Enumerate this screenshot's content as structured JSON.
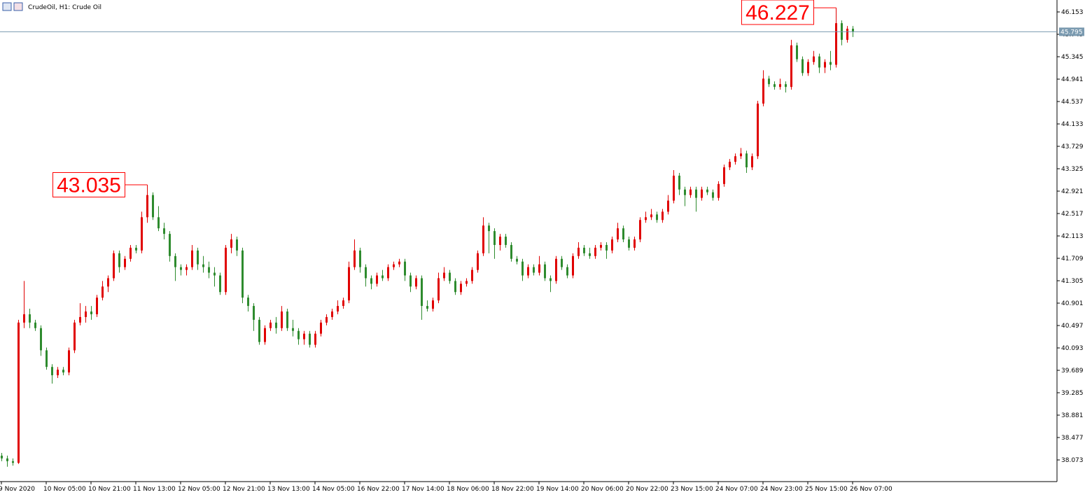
{
  "chart_data": {
    "type": "candlestick",
    "title": "CrudeOil, H1:  Crude Oil",
    "up_color": "#e00000",
    "down_color": "#2e8b2e",
    "ylim": [
      37.682,
      46.368
    ],
    "yticks": [
      38.073,
      38.477,
      38.881,
      39.285,
      39.689,
      40.093,
      40.497,
      40.901,
      41.305,
      41.709,
      42.113,
      42.517,
      42.921,
      43.325,
      43.729,
      44.133,
      44.537,
      44.941,
      45.345,
      45.749,
      46.153
    ],
    "xticks": [
      {
        "value": 0,
        "label": "9 Nov 2020"
      },
      {
        "value": 8,
        "label": "10 Nov 05:00"
      },
      {
        "value": 16,
        "label": "10 Nov 21:00"
      },
      {
        "value": 24,
        "label": "11 Nov 13:00"
      },
      {
        "value": 32,
        "label": "12 Nov 05:00"
      },
      {
        "value": 40,
        "label": "12 Nov 21:00"
      },
      {
        "value": 48,
        "label": "13 Nov 13:00"
      },
      {
        "value": 56,
        "label": "14 Nov 05:00"
      },
      {
        "value": 64,
        "label": "16 Nov 22:00"
      },
      {
        "value": 72,
        "label": "17 Nov 14:00"
      },
      {
        "value": 80,
        "label": "18 Nov 06:00"
      },
      {
        "value": 88,
        "label": "18 Nov 22:00"
      },
      {
        "value": 96,
        "label": "19 Nov 14:00"
      },
      {
        "value": 104,
        "label": "20 Nov 06:00"
      },
      {
        "value": 112,
        "label": "20 Nov 22:00"
      },
      {
        "value": 120,
        "label": "23 Nov 15:00"
      },
      {
        "value": 128,
        "label": "24 Nov 07:00"
      },
      {
        "value": 136,
        "label": "24 Nov 23:00"
      },
      {
        "value": 144,
        "label": "25 Nov 15:00"
      },
      {
        "value": 152,
        "label": "26 Nov 07:00"
      }
    ],
    "last_price": 45.795,
    "annotations": [
      43.035,
      46.227
    ],
    "candles": [
      [
        38.15,
        38.2,
        38.05,
        38.1
      ],
      [
        38.1,
        38.15,
        37.95,
        38.05
      ],
      [
        38.05,
        38.1,
        37.97,
        38.02
      ],
      [
        38.02,
        40.6,
        38.0,
        40.55
      ],
      [
        40.55,
        41.3,
        40.45,
        40.7
      ],
      [
        40.7,
        40.8,
        40.45,
        40.55
      ],
      [
        40.55,
        40.6,
        40.4,
        40.45
      ],
      [
        40.45,
        40.5,
        39.95,
        40.05
      ],
      [
        40.05,
        40.1,
        39.7,
        39.75
      ],
      [
        39.75,
        39.8,
        39.45,
        39.6
      ],
      [
        39.6,
        39.75,
        39.55,
        39.7
      ],
      [
        39.7,
        39.75,
        39.6,
        39.65
      ],
      [
        39.65,
        40.1,
        39.6,
        40.05
      ],
      [
        40.05,
        40.6,
        40.0,
        40.55
      ],
      [
        40.55,
        40.9,
        40.5,
        40.65
      ],
      [
        40.65,
        40.85,
        40.55,
        40.75
      ],
      [
        40.75,
        40.85,
        40.6,
        40.7
      ],
      [
        40.7,
        41.05,
        40.65,
        41.0
      ],
      [
        41.0,
        41.3,
        40.95,
        41.2
      ],
      [
        41.2,
        41.4,
        41.1,
        41.35
      ],
      [
        41.35,
        41.85,
        41.3,
        41.8
      ],
      [
        41.8,
        41.85,
        41.45,
        41.55
      ],
      [
        41.55,
        41.75,
        41.5,
        41.7
      ],
      [
        41.7,
        41.95,
        41.65,
        41.9
      ],
      [
        41.9,
        41.95,
        41.8,
        41.85
      ],
      [
        41.85,
        42.55,
        41.8,
        42.45
      ],
      [
        42.45,
        43.035,
        42.35,
        42.85
      ],
      [
        42.85,
        42.9,
        42.4,
        42.45
      ],
      [
        42.45,
        42.65,
        42.2,
        42.25
      ],
      [
        42.25,
        42.35,
        42.05,
        42.15
      ],
      [
        42.15,
        42.2,
        41.65,
        41.75
      ],
      [
        41.75,
        41.8,
        41.3,
        41.55
      ],
      [
        41.55,
        41.6,
        41.4,
        41.5
      ],
      [
        41.5,
        41.6,
        41.4,
        41.55
      ],
      [
        41.55,
        41.95,
        41.5,
        41.85
      ],
      [
        41.85,
        41.9,
        41.5,
        41.6
      ],
      [
        41.6,
        41.75,
        41.45,
        41.55
      ],
      [
        41.55,
        41.65,
        41.35,
        41.45
      ],
      [
        41.45,
        41.55,
        41.2,
        41.4
      ],
      [
        41.4,
        41.45,
        41.05,
        41.1
      ],
      [
        41.1,
        41.95,
        41.05,
        41.9
      ],
      [
        41.9,
        42.15,
        41.8,
        42.05
      ],
      [
        42.05,
        42.1,
        41.75,
        41.85
      ],
      [
        41.85,
        41.9,
        40.9,
        41.0
      ],
      [
        41.0,
        41.05,
        40.75,
        40.85
      ],
      [
        40.85,
        40.9,
        40.4,
        40.6
      ],
      [
        40.6,
        40.65,
        40.15,
        40.2
      ],
      [
        40.2,
        40.5,
        40.15,
        40.45
      ],
      [
        40.45,
        40.6,
        40.4,
        40.55
      ],
      [
        40.55,
        40.65,
        40.35,
        40.45
      ],
      [
        40.45,
        40.85,
        40.4,
        40.75
      ],
      [
        40.75,
        40.8,
        40.4,
        40.45
      ],
      [
        40.45,
        40.6,
        40.3,
        40.4
      ],
      [
        40.4,
        40.45,
        40.15,
        40.25
      ],
      [
        40.25,
        40.4,
        40.15,
        40.35
      ],
      [
        40.35,
        40.4,
        40.1,
        40.15
      ],
      [
        40.15,
        40.4,
        40.1,
        40.35
      ],
      [
        40.35,
        40.6,
        40.3,
        40.55
      ],
      [
        40.55,
        40.7,
        40.5,
        40.65
      ],
      [
        40.65,
        40.8,
        40.6,
        40.75
      ],
      [
        40.75,
        40.95,
        40.7,
        40.85
      ],
      [
        40.85,
        41.0,
        40.8,
        40.95
      ],
      [
        40.95,
        41.65,
        40.9,
        41.55
      ],
      [
        41.55,
        42.05,
        41.5,
        41.85
      ],
      [
        41.85,
        41.9,
        41.45,
        41.55
      ],
      [
        41.55,
        41.6,
        41.2,
        41.35
      ],
      [
        41.35,
        41.4,
        41.15,
        41.25
      ],
      [
        41.25,
        41.45,
        41.2,
        41.4
      ],
      [
        41.4,
        41.5,
        41.3,
        41.35
      ],
      [
        41.35,
        41.6,
        41.3,
        41.55
      ],
      [
        41.55,
        41.65,
        41.5,
        41.6
      ],
      [
        41.6,
        41.7,
        41.55,
        41.65
      ],
      [
        41.65,
        41.7,
        41.3,
        41.4
      ],
      [
        41.4,
        41.45,
        41.1,
        41.2
      ],
      [
        41.2,
        41.4,
        41.15,
        41.35
      ],
      [
        41.35,
        41.4,
        40.6,
        40.85
      ],
      [
        40.85,
        40.95,
        40.75,
        40.8
      ],
      [
        40.8,
        41.0,
        40.75,
        40.95
      ],
      [
        40.95,
        41.45,
        40.9,
        41.35
      ],
      [
        41.35,
        41.55,
        41.3,
        41.45
      ],
      [
        41.45,
        41.5,
        41.25,
        41.3
      ],
      [
        41.3,
        41.35,
        41.05,
        41.1
      ],
      [
        41.1,
        41.3,
        41.05,
        41.25
      ],
      [
        41.25,
        41.35,
        41.2,
        41.3
      ],
      [
        41.3,
        41.55,
        41.25,
        41.5
      ],
      [
        41.5,
        41.85,
        41.45,
        41.8
      ],
      [
        41.8,
        42.45,
        41.75,
        42.3
      ],
      [
        42.3,
        42.35,
        41.8,
        42.2
      ],
      [
        42.2,
        42.25,
        41.7,
        41.95
      ],
      [
        41.95,
        42.15,
        41.85,
        42.1
      ],
      [
        42.1,
        42.15,
        41.9,
        41.95
      ],
      [
        41.95,
        42.0,
        41.65,
        41.7
      ],
      [
        41.7,
        41.75,
        41.6,
        41.65
      ],
      [
        41.65,
        41.7,
        41.3,
        41.4
      ],
      [
        41.4,
        41.6,
        41.35,
        41.55
      ],
      [
        41.55,
        41.6,
        41.4,
        41.45
      ],
      [
        41.45,
        41.75,
        41.4,
        41.6
      ],
      [
        41.6,
        41.65,
        41.3,
        41.35
      ],
      [
        41.35,
        41.4,
        41.1,
        41.3
      ],
      [
        41.3,
        41.75,
        41.25,
        41.7
      ],
      [
        41.7,
        41.75,
        41.5,
        41.55
      ],
      [
        41.55,
        41.6,
        41.35,
        41.4
      ],
      [
        41.4,
        41.8,
        41.35,
        41.75
      ],
      [
        41.75,
        42.0,
        41.7,
        41.9
      ],
      [
        41.9,
        41.95,
        41.75,
        41.8
      ],
      [
        41.8,
        41.9,
        41.7,
        41.75
      ],
      [
        41.75,
        41.95,
        41.7,
        41.9
      ],
      [
        41.9,
        42.0,
        41.85,
        41.95
      ],
      [
        41.95,
        42.0,
        41.7,
        41.85
      ],
      [
        41.85,
        42.1,
        41.8,
        42.05
      ],
      [
        42.05,
        42.35,
        42.0,
        42.25
      ],
      [
        42.25,
        42.3,
        42.0,
        42.05
      ],
      [
        42.05,
        42.1,
        41.85,
        41.9
      ],
      [
        41.9,
        42.1,
        41.85,
        42.05
      ],
      [
        42.05,
        42.45,
        42.0,
        42.4
      ],
      [
        42.4,
        42.55,
        42.35,
        42.45
      ],
      [
        42.45,
        42.6,
        42.4,
        42.5
      ],
      [
        42.5,
        42.55,
        42.35,
        42.4
      ],
      [
        42.4,
        42.6,
        42.35,
        42.55
      ],
      [
        42.55,
        42.85,
        42.5,
        42.75
      ],
      [
        42.75,
        43.3,
        42.7,
        43.2
      ],
      [
        43.2,
        43.25,
        42.85,
        42.95
      ],
      [
        42.95,
        43.0,
        42.65,
        42.85
      ],
      [
        42.85,
        43.0,
        42.8,
        42.95
      ],
      [
        42.95,
        43.0,
        42.55,
        42.8
      ],
      [
        42.8,
        43.0,
        42.75,
        42.95
      ],
      [
        42.95,
        43.0,
        42.85,
        42.9
      ],
      [
        42.9,
        42.95,
        42.75,
        42.8
      ],
      [
        42.8,
        43.1,
        42.75,
        43.05
      ],
      [
        43.05,
        43.4,
        43.0,
        43.35
      ],
      [
        43.35,
        43.5,
        43.3,
        43.45
      ],
      [
        43.45,
        43.6,
        43.4,
        43.55
      ],
      [
        43.55,
        43.7,
        43.5,
        43.6
      ],
      [
        43.6,
        43.65,
        43.25,
        43.35
      ],
      [
        43.35,
        43.6,
        43.3,
        43.55
      ],
      [
        43.55,
        44.55,
        43.5,
        44.5
      ],
      [
        44.5,
        45.1,
        44.45,
        44.95
      ],
      [
        44.95,
        45.0,
        44.8,
        44.85
      ],
      [
        44.85,
        44.9,
        44.75,
        44.8
      ],
      [
        44.8,
        44.95,
        44.75,
        44.85
      ],
      [
        44.85,
        44.9,
        44.7,
        44.8
      ],
      [
        44.8,
        45.65,
        44.75,
        45.55
      ],
      [
        45.55,
        45.6,
        45.25,
        45.3
      ],
      [
        45.3,
        45.35,
        45.0,
        45.05
      ],
      [
        45.05,
        45.3,
        45.0,
        45.25
      ],
      [
        45.25,
        45.45,
        45.2,
        45.35
      ],
      [
        45.35,
        45.4,
        45.05,
        45.15
      ],
      [
        45.15,
        45.3,
        45.05,
        45.25
      ],
      [
        45.25,
        45.45,
        45.1,
        45.2
      ],
      [
        45.2,
        46.227,
        45.15,
        45.95
      ],
      [
        45.95,
        46.0,
        45.55,
        45.65
      ],
      [
        45.65,
        45.9,
        45.6,
        45.85
      ],
      [
        45.85,
        45.9,
        45.7,
        45.795
      ]
    ]
  }
}
